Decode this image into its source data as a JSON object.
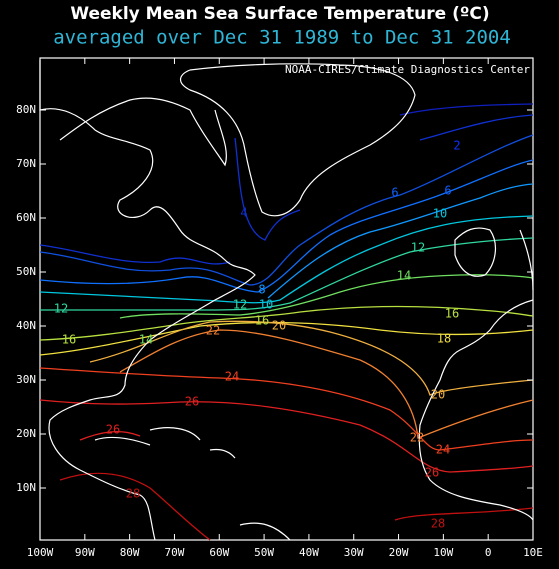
{
  "header": {
    "title": "Weekly Mean Sea Surface Temperature (ºC)",
    "subtitle": "averaged over Dec 31 1989 to Dec 31 2004",
    "credit": "NOAA-CIRES/Climate Diagnostics Center"
  },
  "axes": {
    "lon_ticks": [
      {
        "value": -100,
        "label": "100W"
      },
      {
        "value": -90,
        "label": "90W"
      },
      {
        "value": -80,
        "label": "80W"
      },
      {
        "value": -70,
        "label": "70W"
      },
      {
        "value": -60,
        "label": "60W"
      },
      {
        "value": -50,
        "label": "50W"
      },
      {
        "value": -40,
        "label": "40W"
      },
      {
        "value": -30,
        "label": "30W"
      },
      {
        "value": -20,
        "label": "20W"
      },
      {
        "value": -10,
        "label": "10W"
      },
      {
        "value": 0,
        "label": "0"
      },
      {
        "value": 10,
        "label": "10E"
      }
    ],
    "lat_ticks": [
      {
        "value": 10,
        "label": "10N"
      },
      {
        "value": 20,
        "label": "20N"
      },
      {
        "value": 30,
        "label": "30N"
      },
      {
        "value": 40,
        "label": "40N"
      },
      {
        "value": 50,
        "label": "50N"
      },
      {
        "value": 60,
        "label": "60N"
      },
      {
        "value": 70,
        "label": "70N"
      },
      {
        "value": 80,
        "label": "80N"
      }
    ]
  },
  "contour_labels": [
    "2",
    "4",
    "6",
    "6",
    "8",
    "10",
    "10",
    "12",
    "12",
    "12",
    "14",
    "14",
    "16",
    "16",
    "16",
    "18",
    "20",
    "20",
    "22",
    "22",
    "24",
    "24",
    "26",
    "26",
    "26",
    "28",
    "28"
  ]
}
